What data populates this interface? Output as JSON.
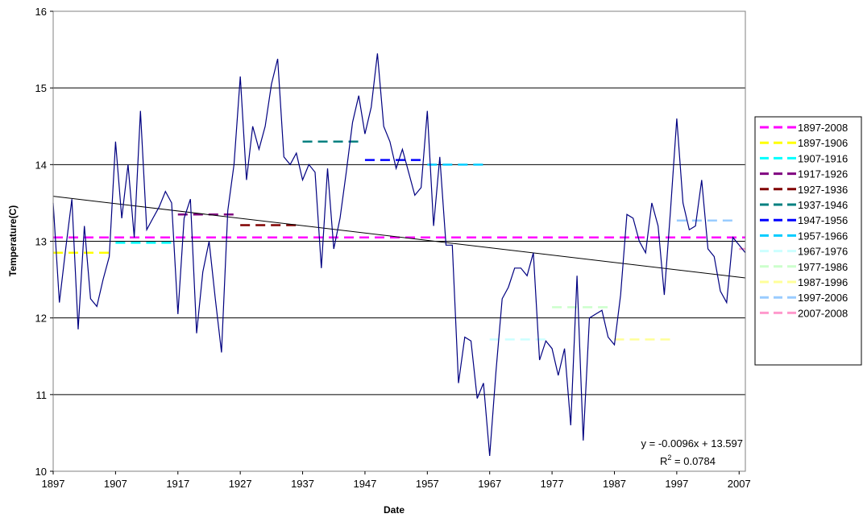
{
  "chart_data": {
    "type": "line",
    "title": "",
    "xlabel": "Date",
    "ylabel": "Temperature(C)",
    "xlim": [
      1897,
      2008
    ],
    "ylim": [
      10,
      16
    ],
    "y_ticks": [
      10,
      11,
      12,
      13,
      14,
      15,
      16
    ],
    "x_tick_labels": [
      "1897",
      "1907",
      "1917",
      "1927",
      "1937",
      "1947",
      "1957",
      "1967",
      "1977",
      "1987",
      "1997",
      "2007"
    ],
    "grid": "horizontal major gridlines",
    "legend_position": "right",
    "series": [
      {
        "kind": "annual",
        "color": "#000080",
        "x": [
          1897,
          1898,
          1899,
          1900,
          1901,
          1902,
          1903,
          1904,
          1905,
          1906,
          1907,
          1908,
          1909,
          1910,
          1911,
          1912,
          1913,
          1914,
          1915,
          1916,
          1917,
          1918,
          1919,
          1920,
          1921,
          1922,
          1923,
          1924,
          1925,
          1926,
          1927,
          1928,
          1929,
          1930,
          1931,
          1932,
          1933,
          1934,
          1935,
          1936,
          1937,
          1938,
          1939,
          1940,
          1941,
          1942,
          1943,
          1944,
          1945,
          1946,
          1947,
          1948,
          1949,
          1950,
          1951,
          1952,
          1953,
          1954,
          1955,
          1956,
          1957,
          1958,
          1959,
          1960,
          1961,
          1962,
          1963,
          1964,
          1965,
          1966,
          1967,
          1968,
          1969,
          1970,
          1971,
          1972,
          1973,
          1974,
          1975,
          1976,
          1977,
          1978,
          1979,
          1980,
          1981,
          1982,
          1983,
          1984,
          1985,
          1986,
          1987,
          1988,
          1989,
          1990,
          1991,
          1992,
          1993,
          1994,
          1995,
          1996,
          1997,
          1998,
          1999,
          2000,
          2001,
          2002,
          2003,
          2004,
          2005,
          2006,
          2007,
          2008
        ],
        "values": [
          13.5,
          12.2,
          12.9,
          13.55,
          11.85,
          13.2,
          12.25,
          12.15,
          12.5,
          12.8,
          14.3,
          13.3,
          14.0,
          13.05,
          14.7,
          13.15,
          13.3,
          13.45,
          13.65,
          13.5,
          12.05,
          13.3,
          13.55,
          11.8,
          12.6,
          13.0,
          12.25,
          11.55,
          13.4,
          14.0,
          15.15,
          13.8,
          14.5,
          14.2,
          14.5,
          15.05,
          15.38,
          14.1,
          14.0,
          14.15,
          13.8,
          14.0,
          13.9,
          12.65,
          13.95,
          12.9,
          13.3,
          13.9,
          14.55,
          14.9,
          14.4,
          14.75,
          15.45,
          14.5,
          14.3,
          13.95,
          14.2,
          13.9,
          13.6,
          13.7,
          14.7,
          13.2,
          14.1,
          12.95,
          12.95,
          11.15,
          11.75,
          11.7,
          10.95,
          11.15,
          10.2,
          11.3,
          12.25,
          12.4,
          12.65,
          12.65,
          12.55,
          12.85,
          11.45,
          11.7,
          11.6,
          11.25,
          11.6,
          10.6,
          12.55,
          10.4,
          12.0,
          12.05,
          12.1,
          11.75,
          11.65,
          12.3,
          13.35,
          13.3,
          13.0,
          12.85,
          13.5,
          13.2,
          12.3,
          13.4,
          14.6,
          13.5,
          13.15,
          13.2,
          13.8,
          12.9,
          12.8,
          12.35,
          12.2,
          13.05,
          12.95,
          12.85
        ]
      },
      {
        "kind": "trendline",
        "color": "#000000",
        "slope": -0.0096,
        "intercept": 13.597,
        "x": [
          1897,
          2008
        ],
        "values": [
          13.587,
          12.522
        ]
      },
      {
        "name": "1897-2008",
        "kind": "average",
        "color": "#ff00ff",
        "x": [
          1897,
          2008
        ],
        "value": 13.05
      },
      {
        "name": "1897-1906",
        "kind": "average",
        "color": "#ffff00",
        "x": [
          1897,
          1906
        ],
        "value": 12.85
      },
      {
        "name": "1907-1916",
        "kind": "average",
        "color": "#00ffff",
        "x": [
          1907,
          1916
        ],
        "value": 12.98
      },
      {
        "name": "1917-1926",
        "kind": "average",
        "color": "#800080",
        "x": [
          1917,
          1926
        ],
        "value": 13.35
      },
      {
        "name": "1927-1936",
        "kind": "average",
        "color": "#800000",
        "x": [
          1927,
          1936
        ],
        "value": 13.21
      },
      {
        "name": "1937-1946",
        "kind": "average",
        "color": "#008080",
        "x": [
          1937,
          1946
        ],
        "value": 14.3
      },
      {
        "name": "1947-1956",
        "kind": "average",
        "color": "#0000ff",
        "x": [
          1947,
          1956
        ],
        "value": 14.06
      },
      {
        "name": "1957-1966",
        "kind": "average",
        "color": "#00ccff",
        "x": [
          1957,
          1966
        ],
        "value": 14.0
      },
      {
        "name": "1967-1976",
        "kind": "average",
        "color": "#ccffff",
        "x": [
          1967,
          1976
        ],
        "value": 11.72
      },
      {
        "name": "1977-1986",
        "kind": "average",
        "color": "#ccffcc",
        "x": [
          1977,
          1986
        ],
        "value": 12.14
      },
      {
        "name": "1987-1996",
        "kind": "average",
        "color": "#ffff99",
        "x": [
          1987,
          1996
        ],
        "value": 11.72
      },
      {
        "name": "1997-2006",
        "kind": "average",
        "color": "#99ccff",
        "x": [
          1997,
          2006
        ],
        "value": 13.27
      },
      {
        "name": "2007-2008",
        "kind": "average",
        "color": "#ff99cc",
        "x": [
          2007,
          2008
        ],
        "value": 12.9
      }
    ],
    "annotations": {
      "equation": "y = -0.0096x + 13.597",
      "r_squared_label": "R",
      "r_squared_sup": "2",
      "r_squared_value": " = 0.0784"
    }
  }
}
